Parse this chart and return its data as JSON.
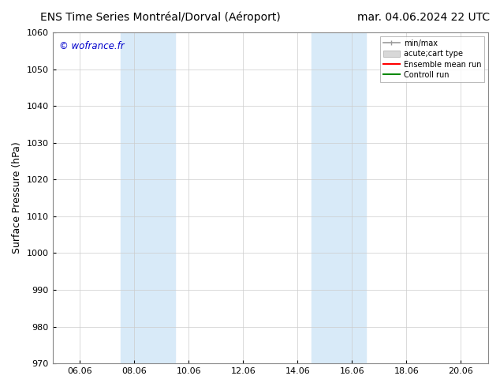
{
  "title_left": "ENS Time Series Montréal/Dorval (Aéroport)",
  "title_right": "mar. 04.06.2024 22 UTC",
  "ylabel": "Surface Pressure (hPa)",
  "watermark": "© wofrance.fr",
  "watermark_color": "#0000cc",
  "ylim": [
    970,
    1060
  ],
  "yticks": [
    970,
    980,
    990,
    1000,
    1010,
    1020,
    1030,
    1040,
    1050,
    1060
  ],
  "xlim": [
    0,
    16
  ],
  "xtick_positions": [
    1,
    3,
    5,
    7,
    9,
    11,
    13,
    15
  ],
  "xticklabels": [
    "06.06",
    "08.06",
    "10.06",
    "12.06",
    "14.06",
    "16.06",
    "18.06",
    "20.06"
  ],
  "shade_bands": [
    {
      "xmin": 2.5,
      "xmax": 4.5,
      "color": "#d8eaf8"
    },
    {
      "xmin": 9.5,
      "xmax": 11.5,
      "color": "#d8eaf8"
    }
  ],
  "bg_color": "#ffffff",
  "plot_bg_color": "#ffffff",
  "grid_color": "#cccccc",
  "legend_entries": [
    {
      "label": "min/max",
      "color": "#aaaaaa",
      "lw": 1.5
    },
    {
      "label": "acute;cart type",
      "color": "#cccccc",
      "lw": 6
    },
    {
      "label": "Ensemble mean run",
      "color": "#ff0000",
      "lw": 1.5
    },
    {
      "label": "Controll run",
      "color": "#008800",
      "lw": 1.5
    }
  ],
  "title_fontsize": 10,
  "tick_fontsize": 8,
  "ylabel_fontsize": 9
}
